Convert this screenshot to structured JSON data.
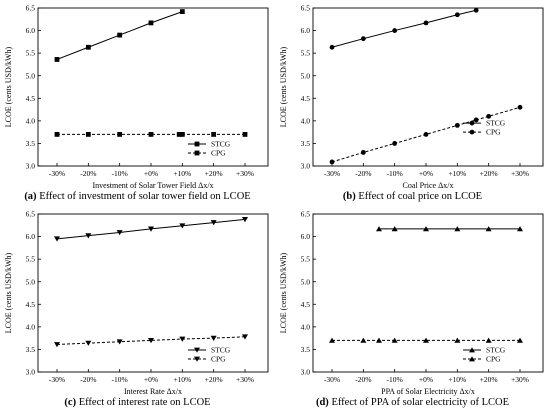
{
  "chart_data": [
    {
      "type": "line",
      "panel_label": "(a)",
      "caption": "Effect of investment of solar tower field on LCOE",
      "xlabel": "Investment of Solar Tower Field Δx/x",
      "ylabel": "LCOE (cents USD/kWh)",
      "categories": [
        "-30%",
        "-20%",
        "-10%",
        "+0%",
        "+10%",
        "+20%",
        "+30%"
      ],
      "ylim": [
        3.0,
        6.5
      ],
      "yticks": [
        "3.0",
        "3.5",
        "4.0",
        "4.5",
        "5.0",
        "5.5",
        "6.0",
        "6.5"
      ],
      "legend_position": "bottom-right",
      "series": [
        {
          "name": "STCG",
          "style": "solid",
          "marker": "square",
          "x": [
            -30,
            -20,
            -10,
            0,
            10
          ],
          "values": [
            5.36,
            5.63,
            5.9,
            6.17,
            6.42
          ]
        },
        {
          "name": "CPG",
          "style": "dashed",
          "marker": "square",
          "x": [
            -30,
            -20,
            -10,
            0,
            9,
            10,
            20,
            30
          ],
          "values": [
            3.7,
            3.7,
            3.7,
            3.7,
            3.7,
            3.7,
            3.7,
            3.7
          ]
        }
      ]
    },
    {
      "type": "line",
      "panel_label": "(b)",
      "caption": "Effect of coal price on LCOE",
      "xlabel": "Coal Price Δx/x",
      "ylabel": "LCOE (cents USD/kWh)",
      "categories": [
        "-30%",
        "-20%",
        "-10%",
        "+0%",
        "+10%",
        "+20%",
        "+30%"
      ],
      "ylim": [
        3.0,
        6.5
      ],
      "yticks": [
        "3.0",
        "3.5",
        "4.0",
        "4.5",
        "5.0",
        "5.5",
        "6.0",
        "6.5"
      ],
      "legend_position": "center-right",
      "series": [
        {
          "name": "STCG",
          "style": "solid",
          "marker": "circle",
          "x": [
            -30,
            -20,
            -10,
            0,
            10,
            16
          ],
          "values": [
            5.63,
            5.82,
            6.0,
            6.17,
            6.35,
            6.45
          ]
        },
        {
          "name": "CPG",
          "style": "dashed",
          "marker": "circle",
          "x": [
            -30,
            -20,
            -10,
            0,
            10,
            16,
            20,
            30
          ],
          "values": [
            3.09,
            3.3,
            3.5,
            3.7,
            3.9,
            4.02,
            4.1,
            4.3
          ]
        }
      ]
    },
    {
      "type": "line",
      "panel_label": "(c)",
      "caption": "Effect of interest rate on LCOE",
      "xlabel": "Interest Rate Δx/x",
      "ylabel": "LCOE (cents USD/kWh)",
      "categories": [
        "-30%",
        "-20%",
        "-10%",
        "+0%",
        "+10%",
        "+20%",
        "+30%"
      ],
      "ylim": [
        3.0,
        6.5
      ],
      "yticks": [
        "3.0",
        "3.5",
        "4.0",
        "4.5",
        "5.0",
        "5.5",
        "6.0",
        "6.5"
      ],
      "legend_position": "bottom-right",
      "series": [
        {
          "name": "STCG",
          "style": "solid",
          "marker": "triangle-down",
          "x": [
            -30,
            -20,
            -10,
            0,
            10,
            20,
            30
          ],
          "values": [
            5.95,
            6.02,
            6.09,
            6.17,
            6.24,
            6.31,
            6.38
          ]
        },
        {
          "name": "CPG",
          "style": "dashed",
          "marker": "triangle-down",
          "x": [
            -30,
            -20,
            -10,
            0,
            10,
            20,
            30
          ],
          "values": [
            3.61,
            3.64,
            3.67,
            3.7,
            3.73,
            3.75,
            3.78
          ]
        }
      ]
    },
    {
      "type": "line",
      "panel_label": "(d)",
      "caption": "Effect of PPA of solar electricity of LCOE",
      "xlabel": "PPA of Solar Electricity Δx/x",
      "ylabel": "LCOE (cents USD/kWh)",
      "categories": [
        "-30%",
        "-20%",
        "-10%",
        "+0%",
        "+10%",
        "+20%",
        "+30%"
      ],
      "ylim": [
        3.0,
        6.5
      ],
      "yticks": [
        "3.0",
        "3.5",
        "4.0",
        "4.5",
        "5.0",
        "5.5",
        "6.0",
        "6.5"
      ],
      "legend_position": "bottom-right",
      "series": [
        {
          "name": "STCG",
          "style": "solid",
          "marker": "triangle-up",
          "x": [
            -15,
            -10,
            0,
            10,
            20,
            30
          ],
          "values": [
            6.17,
            6.17,
            6.17,
            6.17,
            6.17,
            6.17
          ]
        },
        {
          "name": "CPG",
          "style": "dashed",
          "marker": "triangle-up",
          "x": [
            -30,
            -20,
            -15,
            -10,
            0,
            10,
            20,
            30
          ],
          "values": [
            3.7,
            3.7,
            3.7,
            3.7,
            3.7,
            3.7,
            3.7,
            3.7
          ]
        }
      ]
    }
  ]
}
